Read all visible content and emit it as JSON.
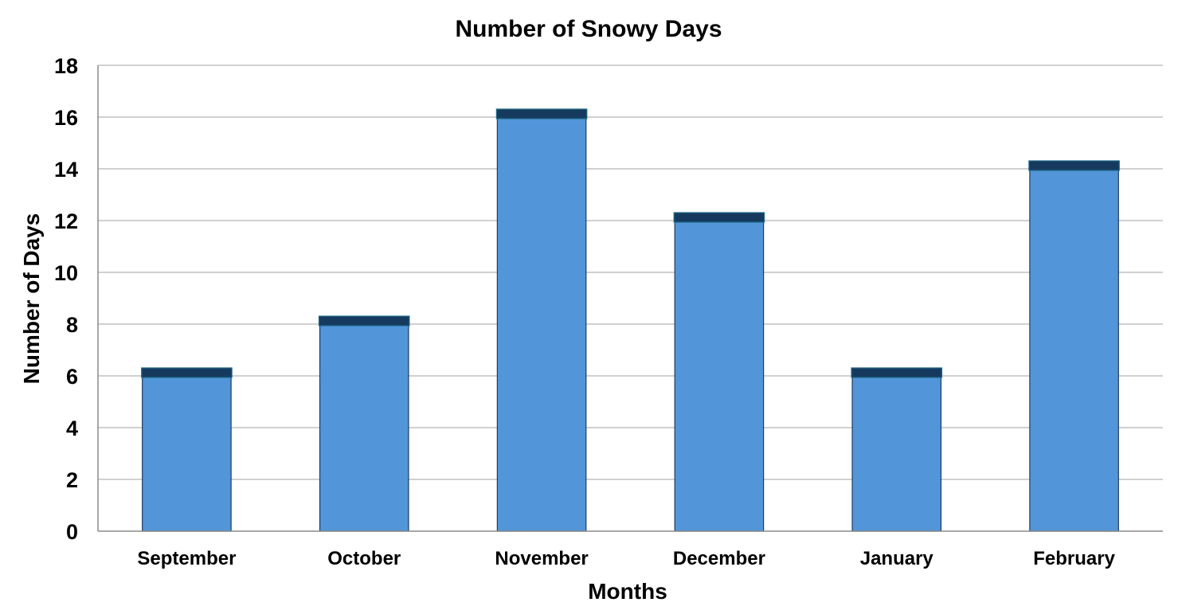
{
  "chart_data": {
    "type": "bar",
    "title": "Number of Snowy Days",
    "xlabel": "Months",
    "ylabel": "Number of Days",
    "categories": [
      "September",
      "October",
      "November",
      "December",
      "January",
      "February"
    ],
    "values": [
      6,
      8,
      16,
      12,
      6,
      14
    ],
    "ylim": [
      0,
      18
    ],
    "yticks": [
      "0",
      "2",
      "4",
      "6",
      "8",
      "10",
      "12",
      "14",
      "16",
      "18"
    ],
    "grid": true,
    "legend": "none",
    "colors": {
      "bar_fill": "#5296D9",
      "bar_stroke": "#1F3A5F",
      "bar_cap": "#163A5E",
      "gridline": "#C0C0C0",
      "axis": "#8C8C8C"
    }
  }
}
